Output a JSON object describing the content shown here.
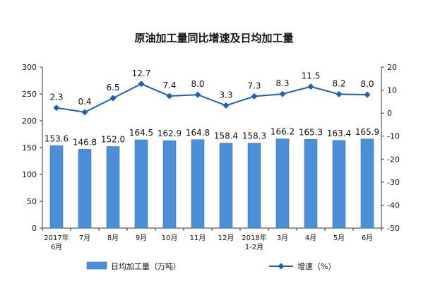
{
  "chart_data": {
    "type": "bar",
    "title": "原油加工量同比增速及日均加工量",
    "categories": [
      [
        "2017年",
        "6月"
      ],
      [
        "7月"
      ],
      [
        "8月"
      ],
      [
        "9月"
      ],
      [
        "10月"
      ],
      [
        "11月"
      ],
      [
        "12月"
      ],
      [
        "2018年",
        "1-2月"
      ],
      [
        "3月"
      ],
      [
        "4月"
      ],
      [
        "5月"
      ],
      [
        "6月"
      ]
    ],
    "series": [
      {
        "name": "日均加工量（万吨）",
        "type": "bar",
        "axis": "left",
        "values": [
          153.6,
          146.8,
          152.0,
          164.5,
          162.9,
          164.8,
          158.4,
          158.3,
          166.2,
          165.3,
          163.4,
          165.9
        ]
      },
      {
        "name": "增速（%）",
        "type": "line",
        "axis": "right",
        "values": [
          2.3,
          0.4,
          6.5,
          12.7,
          7.4,
          8.0,
          3.3,
          7.3,
          8.3,
          11.5,
          8.2,
          8.0
        ]
      }
    ],
    "left_axis": {
      "ylim": [
        0,
        300
      ],
      "ticks": [
        0,
        50,
        100,
        150,
        200,
        250,
        300
      ]
    },
    "right_axis": {
      "ylim": [
        -50,
        20
      ],
      "ticks": [
        -50,
        -40,
        -30,
        -20,
        -10,
        0,
        10,
        20
      ]
    },
    "bar_labels": [
      "153.6",
      "146.8",
      "152.0",
      "164.5",
      "162.9",
      "164.8",
      "158.4",
      "158.3",
      "166.2",
      "165.3",
      "163.4",
      "165.9"
    ],
    "line_labels": [
      "2.3",
      "0.4",
      "6.5",
      "12.7",
      "7.4",
      "8.0",
      "3.3",
      "7.3",
      "8.3",
      "11.5",
      "8.2",
      "8.0"
    ],
    "colors": {
      "bar": "#4a8fd8",
      "bar_stroke": "#2e6bb0",
      "line": "#1f5fb5",
      "marker": "#1f5fb5"
    },
    "legend": {
      "placement": "bottom"
    },
    "grid": false
  }
}
